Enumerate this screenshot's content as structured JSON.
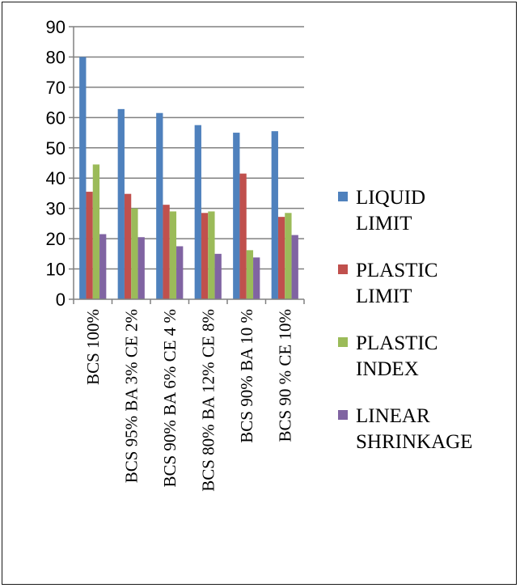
{
  "chart_data": {
    "type": "bar",
    "categories": [
      "BCS 100%",
      "BCS 95% BA 3% CE 2%",
      "BCS 90% BA 6% CE 4 %",
      "BCS 80% BA 12% CE 8%",
      "BCS 90% BA 10 %",
      "BCS 90 % CE 10%"
    ],
    "series": [
      {
        "name": "LIQUID LIMIT",
        "legend_lines": [
          "LIQUID",
          "LIMIT"
        ],
        "color": "#4f81bd",
        "values": [
          80,
          62.8,
          61.5,
          57.5,
          55,
          55.5
        ]
      },
      {
        "name": "PLASTIC LIMIT",
        "legend_lines": [
          "PLASTIC",
          "LIMIT"
        ],
        "color": "#c0504d",
        "values": [
          35.5,
          34.8,
          31.2,
          28.5,
          41.5,
          27.2
        ]
      },
      {
        "name": "PLASTIC INDEX",
        "legend_lines": [
          "PLASTIC",
          "INDEX"
        ],
        "color": "#9bbb59",
        "values": [
          44.5,
          30,
          29,
          29,
          16.2,
          28.5
        ]
      },
      {
        "name": "LINEAR SHRINKAGE",
        "legend_lines": [
          "LINEAR",
          "SHRINKAGE"
        ],
        "color": "#8064a2",
        "values": [
          21.5,
          20.5,
          17.5,
          15,
          13.8,
          21.2
        ]
      }
    ],
    "ylim": [
      0,
      90
    ],
    "yticks": [
      0,
      10,
      20,
      30,
      40,
      50,
      60,
      70,
      80,
      90
    ],
    "grid": true,
    "legend_position": "right"
  }
}
